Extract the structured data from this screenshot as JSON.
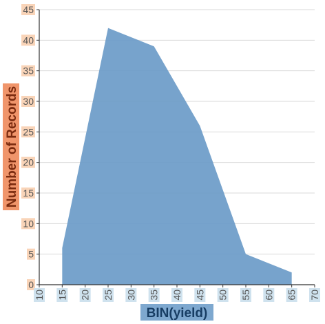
{
  "chart_data": {
    "type": "area",
    "title": "",
    "xlabel": "BIN(yield)",
    "ylabel": "Number of Records",
    "x": [
      15,
      25,
      35,
      45,
      55,
      65
    ],
    "series": [
      {
        "values": [
          6,
          42,
          39,
          26,
          5,
          2
        ]
      }
    ],
    "xlim": [
      10,
      70
    ],
    "ylim": [
      0,
      45
    ],
    "xticks": [
      "10",
      "15",
      "20",
      "25",
      "30",
      "35",
      "40",
      "45",
      "50",
      "55",
      "60",
      "65",
      "70"
    ],
    "yticks": [
      "0",
      "5",
      "10",
      "15",
      "20",
      "25",
      "30",
      "35",
      "40",
      "45"
    ],
    "grid": true,
    "colors": {
      "area": "#6b9bc8",
      "grid": "#d9d9d9",
      "axis": "#333333",
      "ytick_bg": "#f9d4b8",
      "xtick_bg": "#cfe2ee",
      "ylabel_bg": "#f0956b",
      "ylabel_text": "#7a2a0e",
      "xlabel_bg": "#7ea8cf",
      "xlabel_text": "#173d63"
    }
  }
}
